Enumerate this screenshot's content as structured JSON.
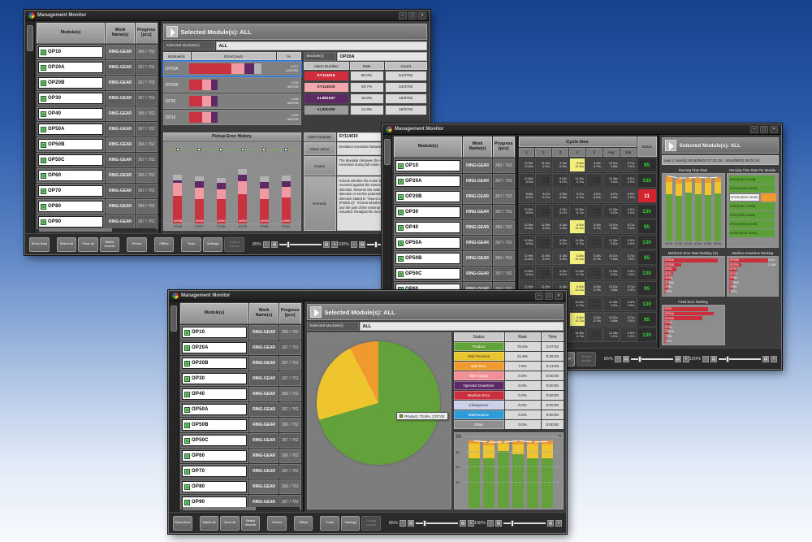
{
  "window_title": "Management Monitor",
  "labels": {
    "selected_header": "Selected Module(s): ALL",
    "selected_modules": "Selected Module(s)",
    "modules": "Module(s)",
    "all": "ALL"
  },
  "colors": {
    "err_red": "#c9333f",
    "err_pink": "#f29aa3",
    "err_purple": "#5d2a66",
    "err_gray": "#b2b2b2",
    "green": "#63a23a",
    "yellow": "#eec52f",
    "orange": "#ef9a2e",
    "rank_red": "#c9303c"
  },
  "module_table": {
    "headers": [
      "Module(s)",
      "Work Name(s)",
      "Progress [pcs]"
    ],
    "rows": [
      {
        "module": "OP10",
        "work": "RING-GEAR",
        "progress": "366 / 762"
      },
      {
        "module": "OP20A",
        "work": "RING-GEAR",
        "progress": "367 / 762"
      },
      {
        "module": "OP20B",
        "work": "RING-GEAR",
        "progress": "367 / 762"
      },
      {
        "module": "OP30",
        "work": "RING-GEAR",
        "progress": "367 / 762"
      },
      {
        "module": "OP40",
        "work": "RING-GEAR",
        "progress": "366 / 762"
      },
      {
        "module": "OP50A",
        "work": "RING-GEAR",
        "progress": "367 / 762"
      },
      {
        "module": "OP50B",
        "work": "RING-GEAR",
        "progress": "366 / 762"
      },
      {
        "module": "OP50C",
        "work": "RING-GEAR",
        "progress": "367 / 762"
      },
      {
        "module": "OP60",
        "work": "RING-GEAR",
        "progress": "366 / 762"
      },
      {
        "module": "OP70",
        "work": "RING-GEAR",
        "progress": "367 / 762"
      },
      {
        "module": "OP80",
        "work": "RING-GEAR",
        "progress": "366 / 762"
      },
      {
        "module": "OP90",
        "work": "RING-GEAR",
        "progress": "367 / 762"
      }
    ]
  },
  "toolbar": {
    "buttons": [
      {
        "label": "Show lines"
      },
      {
        "label": "Select all",
        "gap": true
      },
      {
        "label": "Clear all"
      },
      {
        "label": "Select reverse"
      },
      {
        "label": "Period",
        "gap": true
      },
      {
        "label": "Offline",
        "gap": true
      },
      {
        "label": "Tools",
        "gap": true
      },
      {
        "label": "Settings"
      },
      {
        "label": "Output reports",
        "disabled": true
      }
    ],
    "zoom_left": "85%",
    "zoom_right": "100%"
  },
  "w1": {
    "error_table": {
      "headers": [
        "Module(s)",
        "ErrorCount",
        "%"
      ],
      "rows": [
        {
          "module": "OP20A",
          "selected": true,
          "segments": [
            50,
            16,
            11,
            9
          ],
          "count": "3,217",
          "ratio": "122/3762"
        },
        {
          "module": "OP20B",
          "selected": false,
          "segments": [
            16,
            10,
            8,
            0
          ],
          "count": "1,215",
          "ratio": "45/3705"
        },
        {
          "module": "OP30",
          "selected": false,
          "segments": [
            16,
            10,
            8,
            0
          ],
          "count": "1,215",
          "ratio": "45/3705"
        },
        {
          "module": "OP10",
          "selected": false,
          "segments": [
            16,
            10,
            8,
            0
          ],
          "count": "1,215",
          "ratio": "45/3705"
        }
      ]
    },
    "alarm_module": "OP20A",
    "alarm_table": {
      "headers": [
        "Alarm Number",
        "Rate",
        "Count"
      ],
      "rows": [
        {
          "alarm": "SY114019",
          "rate": "50.0%",
          "count": "61/3762",
          "color": "#d02e3d",
          "text": "#ffffff"
        },
        {
          "alarm": "SY114025",
          "rate": "19.7%",
          "count": "24/3762",
          "color": "#f2a6ad",
          "text": "#222222"
        },
        {
          "alarm": "AL891047",
          "rate": "15.6%",
          "count": "19/3762",
          "color": "#5d2a66",
          "text": "#ffffff"
        },
        {
          "alarm": "AL800298",
          "rate": "14.8%",
          "count": "18/3762",
          "color": "#9c9c9c",
          "text": "#222222"
        }
      ]
    },
    "history": {
      "title": "Pickup Error History",
      "dates": [
        "07/26",
        "07/27",
        "07/28",
        "07/29",
        "07/30",
        "07/31"
      ],
      "bars": [
        {
          "red": 34,
          "pink": 16,
          "purple": 3,
          "gray": 7,
          "label": "16/948"
        },
        {
          "red": 30,
          "pink": 14,
          "purple": 8,
          "gray": 6,
          "label": "15/935"
        },
        {
          "red": 30,
          "pink": 12,
          "purple": 8,
          "gray": 6,
          "label": "14/940"
        },
        {
          "red": 36,
          "pink": 16,
          "purple": 8,
          "gray": 7,
          "label": "18/952"
        },
        {
          "red": 30,
          "pink": 13,
          "purple": 8,
          "gray": 7,
          "label": "15/945"
        },
        {
          "red": 32,
          "pink": 13,
          "purple": 7,
          "gray": 7,
          "label": "16/950"
        }
      ]
    },
    "detail": {
      "number_label": "Alarm Number",
      "number": "SY114019",
      "name_label": "Alarm name",
      "name": "Deviation excessive between motor - load position",
      "cause_label": "Cause",
      "cause": "The deviation between the motor load position is excessive during full-close control.",
      "remedy_label": "Remedy",
      "remedy": "•Check whether the motor turning direction is not reversed against the external encoder installing direction. Reverse the external encoder installing direction or set the parameter opposite to the operating direction stated in \"How to use the external encoder (Pn002.3)\". •Check whether the load such as the stage and the joint of the external encoder are correctly mounted. Readjust the mechanical connection."
    }
  },
  "w2": {
    "cycle_title": "Cycle time",
    "status_header": "Status",
    "cycle_cols": [
      "1",
      "2",
      "3",
      "4",
      "5",
      "Avg",
      "Job"
    ],
    "rows": [
      {
        "cells": [
          [
            "12.99s",
            "13.62s"
          ],
          [
            "11.09s",
            "8.91s"
          ],
          [
            "8.18s",
            "8.99s"
          ],
          [
            "8.00s",
            "10.31s"
          ],
          [
            "8.30s",
            "8.79s"
          ],
          [
            "10.01s",
            "9.86s"
          ],
          [
            "8.71s",
            "2.97s"
          ]
        ],
        "hl": [
          3
        ],
        "status": "95",
        "alert": false
      },
      {
        "cells": [
          [
            "12.89s",
            "8.92s"
          ],
          [
            "12.09s",
            "8.45s"
          ],
          [
            "8.53s",
            "8.97s"
          ],
          [
            "13.39s",
            "8.74s"
          ],
          [
            "12.82s",
            "9.01s"
          ],
          [
            "12.38s",
            "9.02s"
          ],
          [
            "8.97s",
            "2.97s"
          ]
        ],
        "hl": [
          1,
          4
        ],
        "status": "130",
        "alert": false
      },
      {
        "cells": [
          [
            "8.06s",
            "8.97s"
          ],
          [
            "8.07s",
            "8.97s"
          ],
          [
            "8.06s",
            "8.96s"
          ],
          [
            "8.07s",
            "8.75s"
          ],
          [
            "8.07s",
            "8.92s"
          ],
          [
            "8.07s",
            "9.06s"
          ],
          [
            "8.97s",
            "2.97s"
          ]
        ],
        "hl": [],
        "status": "11",
        "alert": true
      },
      {
        "cells": [
          [
            "12.89s",
            "8.92s"
          ],
          [
            "12.09s",
            "8.45s"
          ],
          [
            "8.53s",
            "8.97s"
          ],
          [
            "13.39s",
            "8.74s"
          ],
          [
            "12.82s",
            "9.01s"
          ],
          [
            "12.38s",
            "9.02s"
          ],
          [
            "8.97s",
            "2.97s"
          ]
        ],
        "hl": [
          1,
          4
        ],
        "status": "130",
        "alert": false
      },
      {
        "cells": [
          [
            "12.99s",
            "13.62s"
          ],
          [
            "11.09s",
            "8.91s"
          ],
          [
            "8.18s",
            "8.99s"
          ],
          [
            "8.00s",
            "10.31s"
          ],
          [
            "8.30s",
            "8.79s"
          ],
          [
            "10.01s",
            "9.86s"
          ],
          [
            "8.71s",
            "2.97s"
          ]
        ],
        "hl": [
          3
        ],
        "status": "95",
        "alert": false
      },
      {
        "cells": [
          [
            "12.89s",
            "8.92s"
          ],
          [
            "12.09s",
            "8.45s"
          ],
          [
            "8.53s",
            "8.97s"
          ],
          [
            "13.39s",
            "8.74s"
          ],
          [
            "12.82s",
            "9.01s"
          ],
          [
            "12.38s",
            "9.02s"
          ],
          [
            "8.97s",
            "2.97s"
          ]
        ],
        "hl": [
          1,
          4
        ],
        "status": "130",
        "alert": false
      },
      {
        "cells": [
          [
            "12.99s",
            "13.62s"
          ],
          [
            "11.09s",
            "8.91s"
          ],
          [
            "8.18s",
            "8.99s"
          ],
          [
            "8.00s",
            "10.31s"
          ],
          [
            "8.30s",
            "8.79s"
          ],
          [
            "10.01s",
            "9.86s"
          ],
          [
            "8.71s",
            "2.97s"
          ]
        ],
        "hl": [
          3
        ],
        "status": "95",
        "alert": false
      },
      {
        "cells": [
          [
            "12.89s",
            "8.92s"
          ],
          [
            "12.09s",
            "8.45s"
          ],
          [
            "8.53s",
            "8.97s"
          ],
          [
            "13.39s",
            "8.74s"
          ],
          [
            "12.82s",
            "9.01s"
          ],
          [
            "12.38s",
            "9.02s"
          ],
          [
            "8.97s",
            "2.97s"
          ]
        ],
        "hl": [
          1,
          4
        ],
        "status": "130",
        "alert": false
      },
      {
        "cells": [
          [
            "12.99s",
            "13.62s"
          ],
          [
            "11.09s",
            "8.91s"
          ],
          [
            "8.18s",
            "8.99s"
          ],
          [
            "8.00s",
            "10.31s"
          ],
          [
            "8.30s",
            "8.79s"
          ],
          [
            "10.01s",
            "9.86s"
          ],
          [
            "8.71s",
            "2.97s"
          ]
        ],
        "hl": [
          3
        ],
        "status": "95",
        "alert": false
      },
      {
        "cells": [
          [
            "12.89s",
            "8.92s"
          ],
          [
            "12.09s",
            "8.45s"
          ],
          [
            "8.53s",
            "8.97s"
          ],
          [
            "13.39s",
            "8.74s"
          ],
          [
            "12.82s",
            "9.01s"
          ],
          [
            "12.38s",
            "9.02s"
          ],
          [
            "8.97s",
            "2.97s"
          ]
        ],
        "hl": [
          1,
          4
        ],
        "status": "130",
        "alert": false
      },
      {
        "cells": [
          [
            "12.99s",
            "13.62s"
          ],
          [
            "11.09s",
            "8.91s"
          ],
          [
            "8.18s",
            "8.99s"
          ],
          [
            "8.00s",
            "10.31s"
          ],
          [
            "8.30s",
            "8.79s"
          ],
          [
            "10.01s",
            "9.86s"
          ],
          [
            "8.71s",
            "2.97s"
          ]
        ],
        "hl": [
          3
        ],
        "status": "95",
        "alert": false
      },
      {
        "cells": [
          [
            "12.89s",
            "8.92s"
          ],
          [
            "12.09s",
            "8.45s"
          ],
          [
            "8.53s",
            "8.97s"
          ],
          [
            "13.39s",
            "8.74s"
          ],
          [
            "12.82s",
            "9.01s"
          ],
          [
            "12.38s",
            "9.02s"
          ],
          [
            "8.97s",
            "2.97s"
          ]
        ],
        "hl": [
          1,
          4
        ],
        "status": "130",
        "alert": false
      }
    ],
    "period": "Last 1 hour(s):2016/08/02 07:01:04 - 2016/08/02 08:01:04",
    "c1": {
      "title": "Running Time Rate",
      "bars": [
        {
          "g": 70,
          "y": 18,
          "o": 8
        },
        {
          "g": 68,
          "y": 18,
          "o": 8
        },
        {
          "g": 72,
          "y": 16,
          "o": 7
        },
        {
          "g": 70,
          "y": 17,
          "o": 8
        },
        {
          "g": 69,
          "y": 18,
          "o": 8
        },
        {
          "g": 71,
          "y": 17,
          "o": 7
        }
      ],
      "line": [
        97,
        94,
        94,
        95,
        94,
        95
      ],
      "xlabels": [
        "07:10",
        "07:20",
        "07:30",
        "07:40",
        "07:50",
        "08:00"
      ]
    },
    "c2": {
      "title": "Running Time Rate Per Module",
      "rows": [
        {
          "label": "OP10 [RING-GEAR]",
          "value": 97
        },
        {
          "label": "OP20A [RING-GEAR]",
          "value": 96
        },
        {
          "label": "OP20B [RING-GEAR]",
          "value": 58,
          "chip": true
        },
        {
          "label": "OP30 [RING-GEAR]",
          "value": 96
        },
        {
          "label": "OP40 [RING-GEAR]",
          "value": 97
        },
        {
          "label": "OP50A [RING-GEAR]",
          "value": 96
        },
        {
          "label": "OP50B [RING-GEAR]",
          "value": 97
        }
      ]
    },
    "c3": {
      "title": "MODULE Error Rate Ranking (%)",
      "rows": [
        {
          "label": "OP20A",
          "value": 92
        },
        {
          "label": "OP20B",
          "value": 30
        },
        {
          "label": "OP30",
          "value": 22
        },
        {
          "label": "OP10",
          "value": 16
        },
        {
          "label": "OP40",
          "value": 12
        },
        {
          "label": "OP50A",
          "value": 9
        },
        {
          "label": "OP60",
          "value": 7
        },
        {
          "label": "OP70",
          "value": 5
        }
      ]
    },
    "c4": {
      "title": "Machine Downtime Ranking",
      "rows": [
        {
          "label": "OP20B",
          "value": 92,
          "text": "0.017"
        },
        {
          "label": "OP20A",
          "value": 26,
          "text": "1.205"
        },
        {
          "label": "OP30",
          "value": 18
        },
        {
          "label": "OP10",
          "value": 14
        },
        {
          "label": "OP40",
          "value": 11
        },
        {
          "label": "OP50A",
          "value": 9
        },
        {
          "label": "OP60",
          "value": 7
        },
        {
          "label": "OP70",
          "value": 5
        }
      ]
    },
    "c5": {
      "title": "Fixed Error Ranking",
      "rows": [
        {
          "label": "OP10",
          "value": 76
        },
        {
          "label": "OP20A",
          "value": 86
        },
        {
          "label": "OP20B",
          "value": 66
        },
        {
          "label": "OP30",
          "value": 12
        },
        {
          "label": "OP40",
          "value": 10
        },
        {
          "label": "OP50A",
          "value": 8
        },
        {
          "label": "OP60",
          "value": 6
        },
        {
          "label": "OP70",
          "value": 5
        }
      ]
    }
  },
  "w3": {
    "pie": {
      "slices": [
        {
          "label": "Product",
          "pct": 70.6,
          "color": "#63a23a"
        },
        {
          "label": "Wait Previous",
          "pct": 21.8,
          "color": "#eec52f"
        },
        {
          "label": "Wait Next",
          "pct": 7.6,
          "color": "#ef9a2e"
        }
      ]
    },
    "tooltip": "Product: 70.6%, 2:07:02",
    "status_table": {
      "headers": [
        "Status",
        "Rate",
        "Time"
      ],
      "rows": [
        {
          "label": "Product",
          "color": "#63a23a",
          "text": "#ffffff",
          "rate": "70.6%",
          "time": "2:07:02"
        },
        {
          "label": "Wait Previous",
          "color": "#e8c52e",
          "text": "#333333",
          "rate": "21.8%",
          "time": "0:39:26"
        },
        {
          "label": "Wait Next",
          "color": "#ef9a2e",
          "text": "#ffffff",
          "rate": "7.6%",
          "time": "0:13:29"
        },
        {
          "label": "Wait Supply",
          "color": "#f28e96",
          "text": "#ffffff",
          "rate": "0.0%",
          "time": "0:00:00"
        },
        {
          "label": "Operator Downtime",
          "color": "#5c2a66",
          "text": "#ffffff",
          "rate": "0.0%",
          "time": "0:00:00"
        },
        {
          "label": "Machine Error",
          "color": "#c9303c",
          "text": "#ffffff",
          "rate": "0.0%",
          "time": "0:00:00"
        },
        {
          "label": "Changeover",
          "color": "#cdd0ea",
          "text": "#333333",
          "rate": "0.0%",
          "time": "0:00:00"
        },
        {
          "label": "Maintenance",
          "color": "#2f9bd8",
          "text": "#ffffff",
          "rate": "0.0%",
          "time": "0:00:00"
        },
        {
          "label": "Other",
          "color": "#8f8f8f",
          "text": "#ffffff",
          "rate": "0.0%",
          "time": "0:00:00"
        }
      ]
    },
    "bar_chart": {
      "unit_left": "(%)",
      "unit_right": "(s)",
      "yticks": [
        100,
        80,
        60,
        40
      ],
      "bars": [
        {
          "g": 70,
          "y": 21,
          "o": 5
        },
        {
          "g": 70,
          "y": 19,
          "o": 6
        },
        {
          "g": 80,
          "y": 11,
          "o": 4
        },
        {
          "g": 76,
          "y": 14,
          "o": 5
        },
        {
          "g": 70,
          "y": 20,
          "o": 5
        },
        {
          "g": 70,
          "y": 20,
          "o": 5
        }
      ],
      "line": [
        95,
        93,
        93,
        95,
        93,
        94
      ]
    }
  }
}
